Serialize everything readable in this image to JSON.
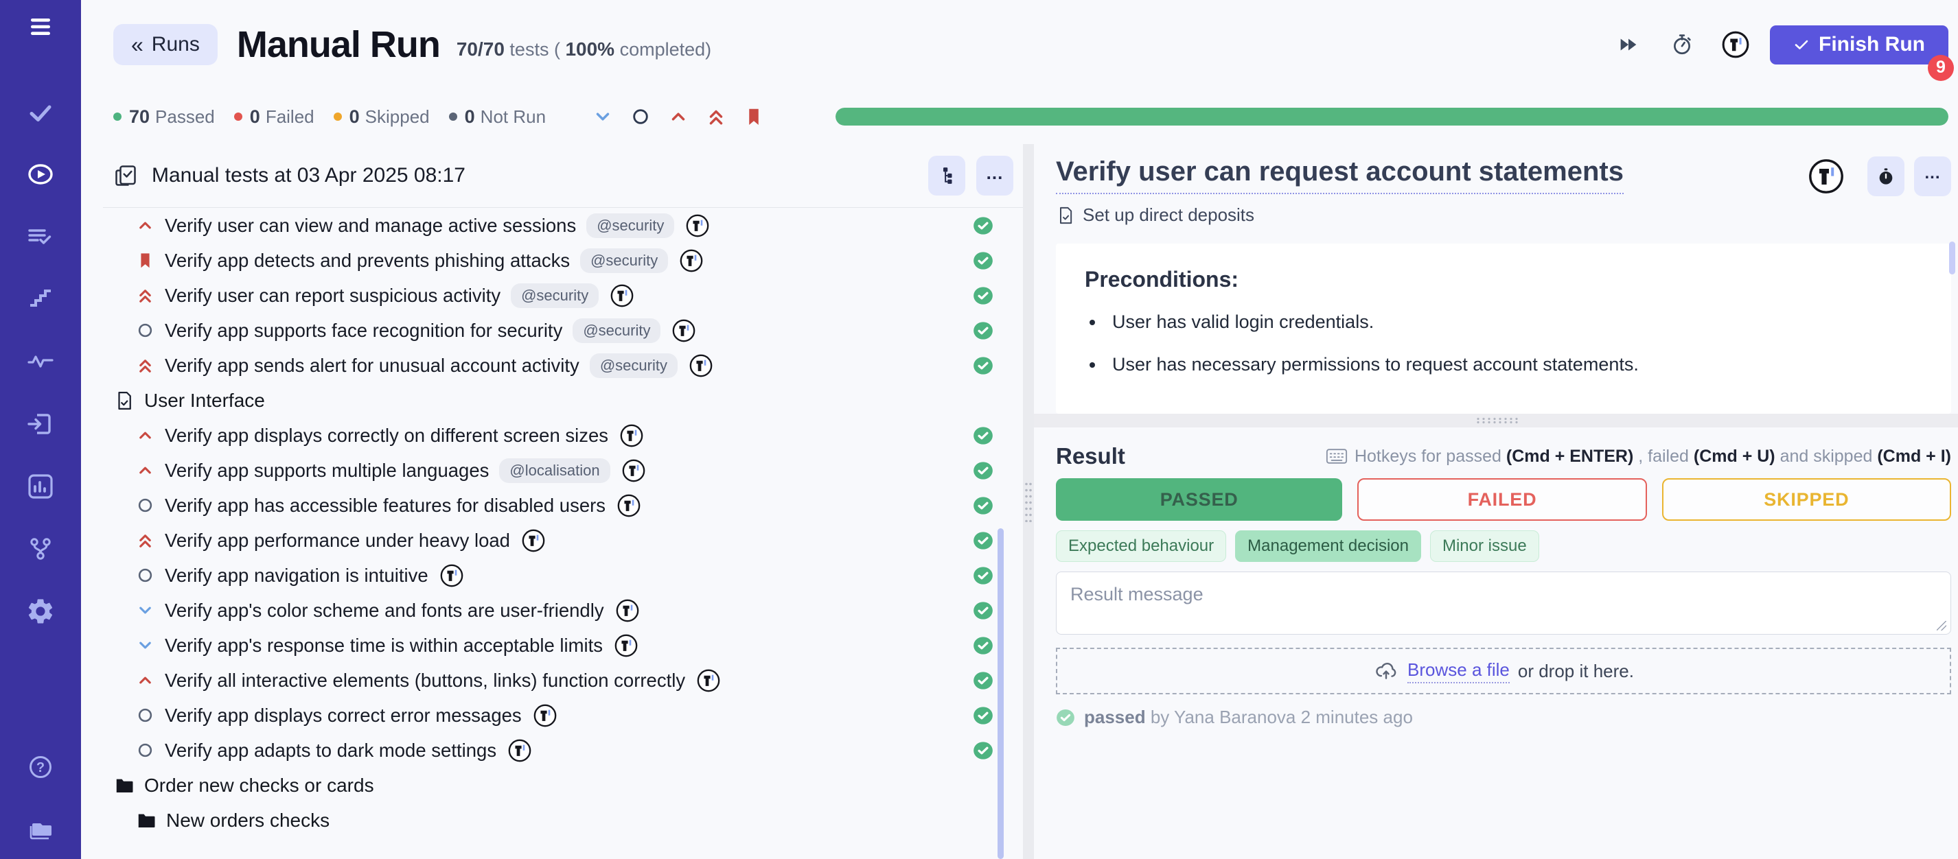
{
  "colors": {
    "accent": "#5a55dd",
    "sidebar": "#3b33a0",
    "progress_green": "#55b67f",
    "check_green": "#4db380",
    "priority_red": "#c94a42",
    "priority_blue": "#6ba0e1",
    "priority_gray": "#5a6477",
    "filter_circle_gray": "#2e3950",
    "failed_red": "#e4615c",
    "skipped_yellow": "#eab531",
    "badge_red": "#ef4a52",
    "logo_blue": "#7f9ff0"
  },
  "sidebar": {
    "icons": [
      "hamburger-menu",
      "checkmark",
      "play-circle",
      "list-check",
      "steps",
      "pulse",
      "sign-in",
      "bar-chart",
      "git-branch",
      "gear",
      "help-circle",
      "folders"
    ],
    "active": "play-circle"
  },
  "header": {
    "back_icon": "«",
    "back_button": "Runs",
    "title": "Manual Run",
    "tests_count": "70/70",
    "tests_mid": " tests ( ",
    "completed_pct": "100%",
    "completed_suffix": " completed)",
    "toolbar_icons": [
      "fast-forward",
      "stopwatch",
      "tms-logo"
    ],
    "finish_button": "Finish Run",
    "badge": "9"
  },
  "stats": {
    "passed": {
      "count": "70",
      "label": "Passed",
      "color": "#4db380"
    },
    "failed": {
      "count": "0",
      "label": "Failed",
      "color": "#e2544e"
    },
    "skipped": {
      "count": "0",
      "label": "Skipped",
      "color": "#efa62b"
    },
    "not_run": {
      "count": "0",
      "label": "Not Run",
      "color": "#5b6576"
    },
    "filter_icons": [
      "chevron-down",
      "circle",
      "chevron-up",
      "chevrons-up",
      "bookmark"
    ],
    "progress_pct": 100
  },
  "left_panel": {
    "title": "Manual tests at 03 Apr 2025 08:17",
    "toolbar_icons": [
      "tree-view",
      "ellipsis"
    ],
    "rows": [
      {
        "type": "test",
        "priority": "chevron-up",
        "title": "Verify user can view and manage active sessions",
        "tag": "@security",
        "status": "passed"
      },
      {
        "type": "test",
        "priority": "bookmark",
        "title": "Verify app detects and prevents phishing attacks",
        "tag": "@security",
        "status": "passed"
      },
      {
        "type": "test",
        "priority": "chevrons-up",
        "title": "Verify user can report suspicious activity",
        "tag": "@security",
        "status": "passed"
      },
      {
        "type": "test",
        "priority": "circle",
        "title": "Verify app supports face recognition for security",
        "tag": "@security",
        "status": "passed"
      },
      {
        "type": "test",
        "priority": "chevrons-up",
        "title": "Verify app sends alert for unusual account activity",
        "tag": "@security",
        "status": "passed"
      },
      {
        "type": "section",
        "title": "User Interface"
      },
      {
        "type": "test",
        "priority": "chevron-up",
        "title": "Verify app displays correctly on different screen sizes",
        "status": "passed"
      },
      {
        "type": "test",
        "priority": "chevron-up",
        "title": "Verify app supports multiple languages",
        "tag": "@localisation",
        "status": "passed"
      },
      {
        "type": "test",
        "priority": "circle",
        "title": "Verify app has accessible features for disabled users",
        "status": "passed"
      },
      {
        "type": "test",
        "priority": "chevrons-up",
        "title": "Verify app performance under heavy load",
        "status": "passed"
      },
      {
        "type": "test",
        "priority": "circle",
        "title": "Verify app navigation is intuitive",
        "status": "passed"
      },
      {
        "type": "test",
        "priority": "chevron-down",
        "title": "Verify app's color scheme and fonts are user-friendly",
        "status": "passed"
      },
      {
        "type": "test",
        "priority": "chevron-down",
        "title": "Verify app's response time is within acceptable limits",
        "status": "passed"
      },
      {
        "type": "test",
        "priority": "chevron-up",
        "title": "Verify all interactive elements (buttons, links) function correctly",
        "status": "passed"
      },
      {
        "type": "test",
        "priority": "circle",
        "title": "Verify app displays correct error messages",
        "status": "passed"
      },
      {
        "type": "test",
        "priority": "circle",
        "title": "Verify app adapts to dark mode settings",
        "status": "passed"
      },
      {
        "type": "folder",
        "title": "Order new checks or cards",
        "indent": 0
      },
      {
        "type": "folder",
        "title": "New orders checks",
        "indent": 1
      }
    ]
  },
  "right_panel": {
    "title": "Verify user can request account statements",
    "toolbar_icons": [
      "tms-logo",
      "stopwatch",
      "ellipsis"
    ],
    "subtitle": "Set up direct deposits",
    "preconditions": {
      "heading": "Preconditions:",
      "items": [
        "User has valid login credentials.",
        "User has necessary permissions to request account statements."
      ]
    },
    "result": {
      "heading": "Result",
      "hotkeys": [
        {
          "text": "Hotkeys for passed ",
          "bold": false
        },
        {
          "text": "(Cmd + ENTER)",
          "bold": true
        },
        {
          "text": " , failed ",
          "bold": false
        },
        {
          "text": "(Cmd + U)",
          "bold": true
        },
        {
          "text": " and skipped ",
          "bold": false
        },
        {
          "text": "(Cmd + I)",
          "bold": true
        }
      ],
      "buttons": [
        {
          "label": "PASSED",
          "state": "passed"
        },
        {
          "label": "FAILED",
          "state": "failed"
        },
        {
          "label": "SKIPPED",
          "state": "skipped"
        }
      ],
      "tags": [
        {
          "label": "Expected behaviour",
          "selected": false
        },
        {
          "label": "Management decision",
          "selected": true
        },
        {
          "label": "Minor issue",
          "selected": false
        }
      ],
      "message_placeholder": "Result message",
      "dropzone": {
        "link": "Browse a file",
        "text": " or drop it here."
      },
      "status_line": {
        "status": "passed",
        "rest": " by Yana Baranova 2 minutes ago"
      }
    }
  }
}
